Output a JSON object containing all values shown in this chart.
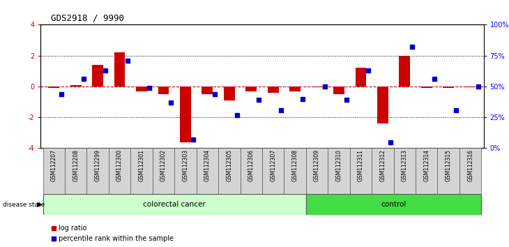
{
  "title": "GDS2918 / 9990",
  "samples": [
    "GSM112207",
    "GSM112208",
    "GSM112299",
    "GSM112300",
    "GSM112301",
    "GSM112302",
    "GSM112303",
    "GSM112304",
    "GSM112305",
    "GSM112306",
    "GSM112307",
    "GSM112308",
    "GSM112309",
    "GSM112310",
    "GSM112311",
    "GSM112312",
    "GSM112313",
    "GSM112314",
    "GSM112315",
    "GSM112316"
  ],
  "log_ratio": [
    -0.1,
    0.1,
    1.4,
    2.2,
    -0.3,
    -0.5,
    -3.6,
    -0.5,
    -0.9,
    -0.3,
    -0.4,
    -0.3,
    -0.05,
    -0.5,
    1.2,
    -2.4,
    2.0,
    -0.1,
    -0.1,
    -0.05
  ],
  "percentile": [
    44,
    56,
    63,
    71,
    49,
    37,
    7,
    44,
    27,
    39,
    31,
    40,
    50,
    39,
    63,
    5,
    82,
    56,
    31,
    50
  ],
  "colorectal_count": 12,
  "control_count": 8,
  "bar_color": "#cc0000",
  "dot_color": "#0000cc",
  "zero_line_color": "#cc0000",
  "bg_color": "#ffffff",
  "ylim": [
    -4,
    4
  ],
  "y2lim": [
    0,
    100
  ],
  "yticks_left": [
    -4,
    -2,
    0,
    2,
    4
  ],
  "yticks_right": [
    0,
    25,
    50,
    75,
    100
  ],
  "ytick_labels_right": [
    "0%",
    "25%",
    "50%",
    "75%",
    "100%"
  ],
  "colorectal_color": "#ccffcc",
  "control_color": "#44dd44",
  "label_colorectal": "colorectal cancer",
  "label_control": "control",
  "disease_state_label": "disease state",
  "legend_log": "log ratio",
  "legend_pct": "percentile rank within the sample"
}
